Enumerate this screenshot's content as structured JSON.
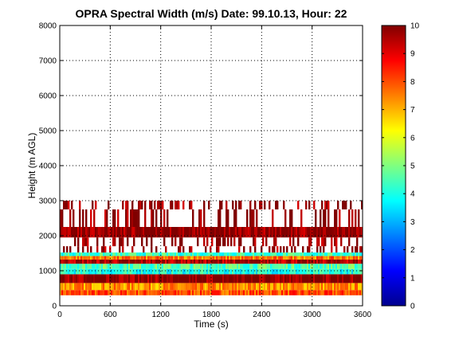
{
  "chart_data": {
    "type": "heatmap",
    "title": "OPRA Spectral Width (m/s)  Date: 99.10.13, Hour: 22",
    "xlabel": "Time (s)",
    "ylabel": "Height (m AGL)",
    "xlim": [
      0,
      3600
    ],
    "ylim": [
      0,
      8000
    ],
    "xticks": [
      "0",
      "600",
      "1200",
      "1800",
      "2400",
      "3000",
      "3600"
    ],
    "yticks": [
      "0",
      "1000",
      "2000",
      "3000",
      "4000",
      "5000",
      "6000",
      "7000",
      "8000"
    ],
    "grid": true,
    "colormap": "jet",
    "colorbar": {
      "min": 0,
      "max": 10,
      "ticks": [
        "0",
        "1",
        "2",
        "3",
        "4",
        "5",
        "6",
        "7",
        "8",
        "9",
        "10"
      ]
    },
    "bands": [
      {
        "y0": 300,
        "y1": 450,
        "value": 8.0,
        "spotty": false
      },
      {
        "y0": 450,
        "y1": 650,
        "value": 7.3,
        "spotty": false
      },
      {
        "y0": 650,
        "y1": 900,
        "value": 9.9,
        "spotty": false
      },
      {
        "y0": 900,
        "y1": 1050,
        "value": 4.0,
        "spotty": false
      },
      {
        "y0": 1050,
        "y1": 1200,
        "value": 4.6,
        "spotty": false
      },
      {
        "y0": 1200,
        "y1": 1320,
        "value": 9.6,
        "spotty": false
      },
      {
        "y0": 1320,
        "y1": 1420,
        "value": 7.6,
        "spotty": false
      },
      {
        "y0": 1420,
        "y1": 1520,
        "value": 4.3,
        "spotty": false
      },
      {
        "y0": 1520,
        "y1": 1700,
        "value": 9.8,
        "spotty": true
      },
      {
        "y0": 1700,
        "y1": 1950,
        "value": 9.9,
        "spotty": true
      },
      {
        "y0": 1950,
        "y1": 2250,
        "value": 9.9,
        "spotty": false
      },
      {
        "y0": 2250,
        "y1": 2750,
        "value": 9.9,
        "spotty": true
      },
      {
        "y0": 2750,
        "y1": 3000,
        "value": 9.9,
        "spotty": true
      }
    ]
  }
}
